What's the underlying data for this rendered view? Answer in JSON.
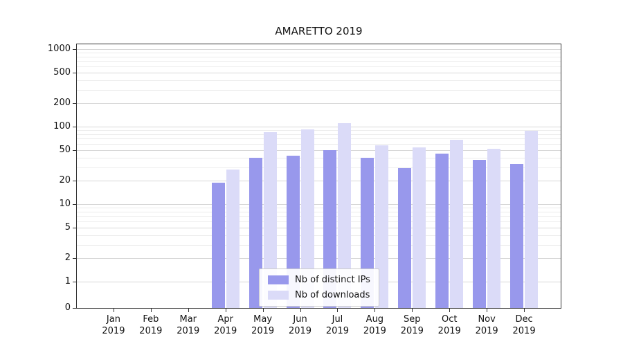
{
  "title": "AMARETTO 2019",
  "chart_data": {
    "type": "bar",
    "title": "AMARETTO 2019",
    "categories": [
      "Jan 2019",
      "Feb 2019",
      "Mar 2019",
      "Apr 2019",
      "May 2019",
      "Jun 2019",
      "Jul 2019",
      "Aug 2019",
      "Sep 2019",
      "Oct 2019",
      "Nov 2019",
      "Dec 2019"
    ],
    "series": [
      {
        "name": "Nb of distinct IPs",
        "color": "#9898ec",
        "values": [
          0,
          0,
          0,
          19,
          40,
          42,
          50,
          40,
          29,
          45,
          37,
          33
        ]
      },
      {
        "name": "Nb of downloads",
        "color": "#dbdbf8",
        "values": [
          0,
          0,
          0,
          28,
          85,
          93,
          110,
          57,
          54,
          68,
          52,
          88
        ]
      }
    ],
    "xlabel": "",
    "ylabel": "",
    "y_scale": "symlog",
    "ylim": [
      0,
      1400
    ],
    "y_ticks": [
      0,
      1,
      2,
      5,
      10,
      20,
      50,
      100,
      200,
      500,
      1000
    ],
    "y_minor_ticks": [
      3,
      4,
      6,
      7,
      8,
      9,
      30,
      40,
      60,
      70,
      80,
      90,
      300,
      400,
      600,
      700,
      800,
      900
    ],
    "grid": true,
    "legend_position": "lower center"
  },
  "colors": {
    "grid_major": "#d7d7d7",
    "grid_minor": "#ececec",
    "axis_frame": "#333333",
    "text": "#111111"
  }
}
